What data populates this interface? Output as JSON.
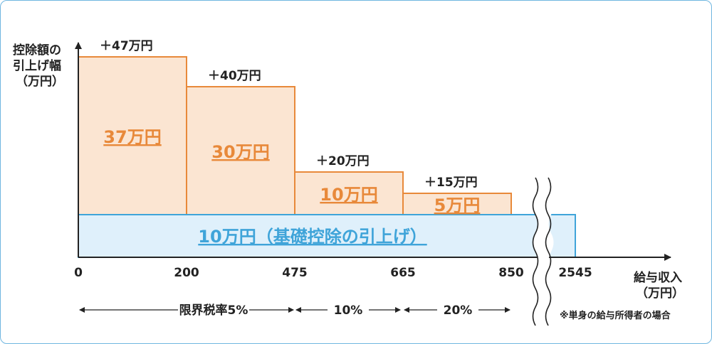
{
  "chart_data": {
    "type": "bar",
    "ylabel_lines": [
      "控除額の",
      "引上げ幅",
      "（万円）"
    ],
    "xlabel_lines": [
      "給与収入",
      "（万円）"
    ],
    "x_ticks": [
      "0",
      "200",
      "475",
      "665",
      "850",
      "2545"
    ],
    "base": {
      "value": 10,
      "label": "10万円（基礎控除の引上げ）",
      "x_from": 0,
      "x_to": 2545
    },
    "segments": [
      {
        "x_from": 0,
        "x_to": 200,
        "total": 47,
        "extra": 37,
        "total_label": "＋47万円",
        "extra_label": "37万円"
      },
      {
        "x_from": 200,
        "x_to": 475,
        "total": 40,
        "extra": 30,
        "total_label": "＋40万円",
        "extra_label": "30万円"
      },
      {
        "x_from": 475,
        "x_to": 665,
        "total": 20,
        "extra": 10,
        "total_label": "＋20万円",
        "extra_label": "10万円"
      },
      {
        "x_from": 665,
        "x_to": 850,
        "total": 15,
        "extra": 5,
        "total_label": "＋15万円",
        "extra_label": "5万円"
      }
    ],
    "tax_rates": [
      {
        "label": "限界税率5%",
        "x_from": 0,
        "x_to": 475
      },
      {
        "label": "10%",
        "x_from": 475,
        "x_to": 665
      },
      {
        "label": "20%",
        "x_from": 665,
        "x_to": 850
      }
    ],
    "axis_break_between": [
      850,
      2545
    ],
    "note": "※単身の給与所得者の場合",
    "colors": {
      "extra_fill": "#fbe5d2",
      "extra_stroke": "#e8893a",
      "extra_text": "#e8893a",
      "base_fill": "#dff0fb",
      "base_stroke": "#3fa4d9",
      "base_text": "#3fa4d9",
      "axis": "#222222",
      "frame": "#6fb6e0"
    }
  }
}
